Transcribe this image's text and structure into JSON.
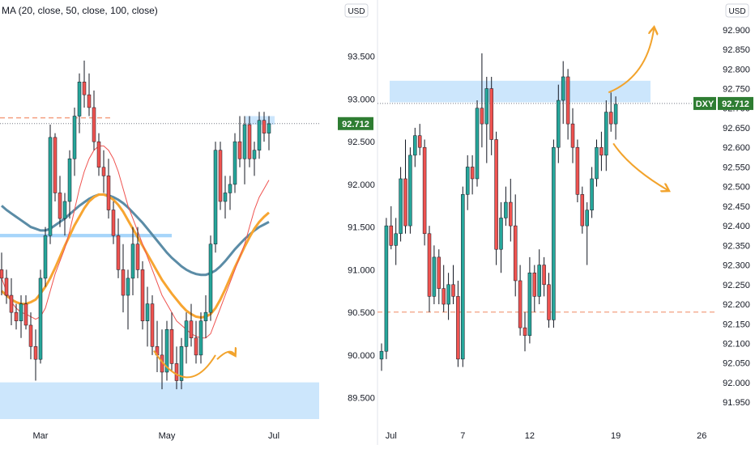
{
  "colors": {
    "up": "#26a69a",
    "down": "#ef5350",
    "wick": "#131722",
    "ma20": "#ef5350",
    "ma50": "#f7a531",
    "ma100": "#5b8ca6",
    "zone": "#bbdefb",
    "arrow": "#f2a32c",
    "price_badge": "#2e7d32",
    "dashed": "#f4a081",
    "pane_divider": "#d1d4dc",
    "axis_text": "#131722"
  },
  "left_pane": {
    "indicator_label": "MA (20, close, 50, close, 100, close)",
    "currency": "USD",
    "price_labels": [
      "93.500",
      "93.000",
      "92.500",
      "92.000",
      "91.500",
      "91.000",
      "90.500",
      "90.000",
      "89.500"
    ],
    "price_values": [
      93.5,
      93.0,
      92.5,
      92.0,
      91.5,
      91.0,
      90.5,
      90.0,
      89.5
    ],
    "current_price": "92.712",
    "current_value": 92.712,
    "x_labels": [
      "Mar",
      "May",
      "Jul"
    ],
    "x_label_index": [
      8,
      34,
      56
    ],
    "resistance_level": 92.78,
    "support_zone": [
      89.25,
      89.68
    ],
    "mid_zone": [
      91.38,
      91.42
    ],
    "chart_data": {
      "type": "candlestick",
      "interval": "daily",
      "ylim": [
        89.25,
        93.8
      ],
      "candles": [
        [
          91.0,
          91.2,
          90.7,
          90.9
        ],
        [
          90.9,
          91.0,
          90.6,
          90.7
        ],
        [
          90.7,
          90.9,
          90.35,
          90.5
        ],
        [
          90.5,
          90.6,
          90.3,
          90.4
        ],
        [
          90.4,
          90.7,
          90.2,
          90.6
        ],
        [
          90.6,
          90.7,
          90.3,
          90.35
        ],
        [
          90.35,
          90.5,
          89.95,
          90.1
        ],
        [
          90.1,
          90.3,
          89.7,
          89.95
        ],
        [
          89.95,
          91.0,
          89.9,
          90.9
        ],
        [
          90.9,
          91.5,
          90.8,
          91.4
        ],
        [
          91.4,
          92.7,
          91.3,
          92.55
        ],
        [
          92.55,
          92.6,
          91.8,
          91.9
        ],
        [
          91.9,
          92.1,
          91.5,
          91.6
        ],
        [
          91.6,
          91.9,
          91.4,
          91.8
        ],
        [
          91.8,
          92.4,
          91.6,
          92.3
        ],
        [
          92.3,
          92.9,
          92.1,
          92.8
        ],
        [
          92.8,
          93.3,
          92.6,
          93.2
        ],
        [
          93.2,
          93.45,
          92.9,
          93.05
        ],
        [
          93.05,
          93.3,
          92.8,
          92.9
        ],
        [
          92.9,
          93.1,
          92.4,
          92.5
        ],
        [
          92.5,
          92.6,
          92.1,
          92.2
        ],
        [
          92.2,
          92.4,
          91.9,
          92.1
        ],
        [
          92.1,
          92.3,
          91.6,
          91.7
        ],
        [
          91.7,
          91.8,
          91.3,
          91.4
        ],
        [
          91.4,
          91.6,
          90.9,
          91.0
        ],
        [
          91.0,
          91.3,
          90.5,
          90.7
        ],
        [
          90.7,
          91.0,
          90.3,
          90.9
        ],
        [
          90.9,
          91.5,
          90.7,
          91.3
        ],
        [
          91.3,
          91.5,
          90.9,
          91.0
        ],
        [
          91.0,
          91.1,
          90.3,
          90.4
        ],
        [
          90.4,
          90.8,
          90.1,
          90.6
        ],
        [
          90.6,
          90.7,
          90.0,
          90.1
        ],
        [
          90.1,
          90.4,
          89.8,
          90.0
        ],
        [
          90.0,
          90.3,
          89.6,
          89.8
        ],
        [
          89.8,
          90.4,
          89.7,
          90.3
        ],
        [
          90.3,
          90.5,
          89.8,
          89.9
        ],
        [
          89.9,
          90.1,
          89.6,
          89.7
        ],
        [
          89.7,
          90.2,
          89.6,
          90.1
        ],
        [
          90.1,
          90.5,
          89.9,
          90.4
        ],
        [
          90.4,
          90.6,
          90.1,
          90.2
        ],
        [
          90.2,
          90.4,
          89.9,
          90.0
        ],
        [
          90.0,
          90.5,
          89.9,
          90.4
        ],
        [
          90.4,
          90.7,
          90.2,
          90.5
        ],
        [
          90.5,
          91.4,
          90.4,
          91.3
        ],
        [
          91.3,
          92.5,
          91.2,
          92.4
        ],
        [
          92.4,
          92.5,
          91.7,
          91.8
        ],
        [
          91.8,
          92.1,
          91.6,
          91.9
        ],
        [
          91.9,
          92.1,
          91.7,
          92.0
        ],
        [
          92.0,
          92.6,
          91.9,
          92.5
        ],
        [
          92.5,
          92.8,
          92.2,
          92.3
        ],
        [
          92.3,
          92.8,
          92.0,
          92.7
        ],
        [
          92.7,
          92.8,
          92.2,
          92.3
        ],
        [
          92.3,
          92.5,
          92.1,
          92.4
        ],
        [
          92.4,
          92.85,
          92.3,
          92.75
        ],
        [
          92.75,
          92.85,
          92.5,
          92.6
        ],
        [
          92.6,
          92.8,
          92.4,
          92.71
        ]
      ],
      "ma20": [
        90.9,
        90.75,
        90.62,
        90.55,
        90.5,
        90.48,
        90.45,
        90.42,
        90.45,
        90.55,
        90.75,
        90.95,
        91.1,
        91.25,
        91.45,
        91.7,
        91.95,
        92.15,
        92.3,
        92.4,
        92.45,
        92.45,
        92.4,
        92.3,
        92.15,
        91.95,
        91.75,
        91.6,
        91.45,
        91.3,
        91.15,
        91.0,
        90.85,
        90.7,
        90.6,
        90.5,
        90.4,
        90.35,
        90.3,
        90.25,
        90.22,
        90.2,
        90.2,
        90.25,
        90.4,
        90.55,
        90.7,
        90.85,
        91.0,
        91.15,
        91.3,
        91.5,
        91.7,
        91.85,
        91.95,
        92.05
      ],
      "ma50": [
        90.75,
        90.7,
        90.65,
        90.62,
        90.6,
        90.6,
        90.62,
        90.65,
        90.72,
        90.8,
        90.9,
        91.02,
        91.15,
        91.28,
        91.4,
        91.52,
        91.62,
        91.72,
        91.8,
        91.85,
        91.88,
        91.88,
        91.86,
        91.82,
        91.76,
        91.68,
        91.58,
        91.48,
        91.38,
        91.28,
        91.18,
        91.08,
        90.98,
        90.88,
        90.8,
        90.72,
        90.65,
        90.58,
        90.52,
        90.48,
        90.45,
        90.44,
        90.45,
        90.48,
        90.55,
        90.65,
        90.77,
        90.9,
        91.03,
        91.15,
        91.27,
        91.38,
        91.48,
        91.56,
        91.62,
        91.67
      ],
      "ma100": [
        91.75,
        91.7,
        91.66,
        91.62,
        91.58,
        91.54,
        91.5,
        91.48,
        91.46,
        91.46,
        91.48,
        91.52,
        91.56,
        91.6,
        91.65,
        91.7,
        91.75,
        91.79,
        91.83,
        91.86,
        91.88,
        91.88,
        91.87,
        91.85,
        91.82,
        91.78,
        91.73,
        91.67,
        91.61,
        91.55,
        91.48,
        91.41,
        91.34,
        91.27,
        91.2,
        91.14,
        91.09,
        91.04,
        91.0,
        90.97,
        90.95,
        90.94,
        90.94,
        90.96,
        90.99,
        91.04,
        91.1,
        91.17,
        91.24,
        91.3,
        91.36,
        91.41,
        91.46,
        91.5,
        91.53,
        91.56
      ]
    }
  },
  "right_pane": {
    "currency": "USD",
    "symbol": "DXY",
    "current_price": "92.712",
    "current_value": 92.712,
    "price_labels": [
      "92.900",
      "92.850",
      "92.800",
      "92.750",
      "92.700",
      "92.650",
      "92.600",
      "92.550",
      "92.500",
      "92.450",
      "92.400",
      "92.350",
      "92.300",
      "92.250",
      "92.200",
      "92.150",
      "92.100",
      "92.050",
      "92.000",
      "91.950"
    ],
    "price_values": [
      92.9,
      92.85,
      92.8,
      92.75,
      92.7,
      92.65,
      92.6,
      92.55,
      92.5,
      92.45,
      92.4,
      92.35,
      92.3,
      92.25,
      92.2,
      92.15,
      92.1,
      92.05,
      92.0,
      91.95
    ],
    "x_labels": [
      "Jul",
      "7",
      "12",
      "19",
      "26"
    ],
    "x_label_index": [
      2,
      17,
      31,
      49,
      67
    ],
    "resistance_zone": [
      92.715,
      92.77
    ],
    "support_level": 92.18,
    "chart_data": {
      "type": "candlestick",
      "interval": "4h",
      "ylim": [
        91.905,
        92.945
      ],
      "candles": [
        [
          92.06,
          92.1,
          92.03,
          92.08
        ],
        [
          92.08,
          92.42,
          92.06,
          92.4
        ],
        [
          92.4,
          92.45,
          92.34,
          92.35
        ],
        [
          92.35,
          92.42,
          92.3,
          92.38
        ],
        [
          92.38,
          92.55,
          92.36,
          92.52
        ],
        [
          92.52,
          92.62,
          92.38,
          92.4
        ],
        [
          92.4,
          92.6,
          92.38,
          92.58
        ],
        [
          92.58,
          92.65,
          92.55,
          92.63
        ],
        [
          92.63,
          92.66,
          92.58,
          92.6
        ],
        [
          92.6,
          92.62,
          92.35,
          92.38
        ],
        [
          92.38,
          92.4,
          92.18,
          92.22
        ],
        [
          92.22,
          92.35,
          92.2,
          92.32
        ],
        [
          92.32,
          92.34,
          92.2,
          92.24
        ],
        [
          92.24,
          92.3,
          92.18,
          92.2
        ],
        [
          92.2,
          92.28,
          92.16,
          92.25
        ],
        [
          92.25,
          92.3,
          92.2,
          92.22
        ],
        [
          92.22,
          92.26,
          92.04,
          92.06
        ],
        [
          92.06,
          92.5,
          92.04,
          92.48
        ],
        [
          92.48,
          92.58,
          92.44,
          92.55
        ],
        [
          92.55,
          92.58,
          92.48,
          92.52
        ],
        [
          92.52,
          92.72,
          92.5,
          92.7
        ],
        [
          92.7,
          92.84,
          92.6,
          92.66
        ],
        [
          92.66,
          92.78,
          92.56,
          92.75
        ],
        [
          92.75,
          92.78,
          92.58,
          92.62
        ],
        [
          92.62,
          92.64,
          92.3,
          92.34
        ],
        [
          92.34,
          92.46,
          92.28,
          92.42
        ],
        [
          92.42,
          92.5,
          92.4,
          92.46
        ],
        [
          92.46,
          92.52,
          92.36,
          92.4
        ],
        [
          92.4,
          92.48,
          92.22,
          92.26
        ],
        [
          92.26,
          92.3,
          92.12,
          92.14
        ],
        [
          92.14,
          92.18,
          92.08,
          92.12
        ],
        [
          92.12,
          92.32,
          92.1,
          92.28
        ],
        [
          92.28,
          92.3,
          92.18,
          92.22
        ],
        [
          92.22,
          92.34,
          92.2,
          92.3
        ],
        [
          92.3,
          92.32,
          92.22,
          92.25
        ],
        [
          92.25,
          92.28,
          92.14,
          92.16
        ],
        [
          92.16,
          92.62,
          92.14,
          92.6
        ],
        [
          92.6,
          92.76,
          92.56,
          92.72
        ],
        [
          92.72,
          92.82,
          92.66,
          92.78
        ],
        [
          92.78,
          92.8,
          92.62,
          92.66
        ],
        [
          92.66,
          92.7,
          92.56,
          92.6
        ],
        [
          92.6,
          92.62,
          92.46,
          92.48
        ],
        [
          92.48,
          92.5,
          92.38,
          92.4
        ],
        [
          92.4,
          92.46,
          92.3,
          92.44
        ],
        [
          92.44,
          92.55,
          92.42,
          92.52
        ],
        [
          92.52,
          92.62,
          92.5,
          92.6
        ],
        [
          92.6,
          92.64,
          92.54,
          92.58
        ],
        [
          92.58,
          92.72,
          92.54,
          92.69
        ],
        [
          92.69,
          92.74,
          92.64,
          92.66
        ],
        [
          92.66,
          92.73,
          92.62,
          92.71
        ]
      ]
    },
    "arrow_up": {
      "from": [
        47.5,
        92.74
      ],
      "to": [
        57.0,
        92.905
      ]
    },
    "arrow_down": {
      "from": [
        48.5,
        92.61
      ],
      "to": [
        60.0,
        92.49
      ]
    }
  }
}
